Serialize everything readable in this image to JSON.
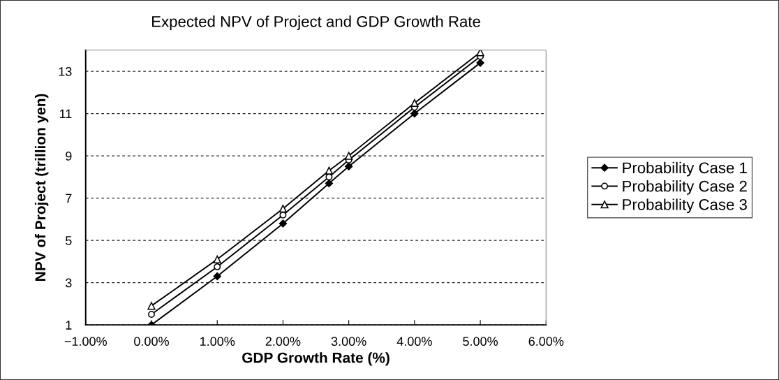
{
  "chart_data": {
    "type": "line",
    "title": "Expected NPV of Project and GDP Growth Rate",
    "xlabel": "GDP Growth Rate (%)",
    "ylabel": "NPV of Project (trillion yen)",
    "x": [
      0,
      1,
      2,
      2.7,
      3,
      4,
      5
    ],
    "series": [
      {
        "name": "Probability Case 1",
        "color": "#000000",
        "marker": "diamond",
        "values": [
          1.0,
          3.3,
          5.8,
          7.7,
          8.5,
          11.0,
          13.4
        ]
      },
      {
        "name": "Probability Case 2",
        "color": "#000000",
        "marker": "circle",
        "values": [
          1.5,
          3.75,
          6.2,
          8.0,
          8.8,
          11.3,
          13.7
        ]
      },
      {
        "name": "Probability Case 3",
        "color": "#000000",
        "marker": "triangle",
        "values": [
          1.9,
          4.1,
          6.5,
          8.3,
          9.0,
          11.5,
          13.9
        ]
      }
    ],
    "xlim": [
      -1,
      6
    ],
    "xticks": [
      {
        "value": -1,
        "label": "−1.00%"
      },
      {
        "value": 0,
        "label": "0.00%"
      },
      {
        "value": 1,
        "label": "1.00%"
      },
      {
        "value": 2,
        "label": "2.00%"
      },
      {
        "value": 3,
        "label": "3.00%"
      },
      {
        "value": 4,
        "label": "4.00%"
      },
      {
        "value": 5,
        "label": "5.00%"
      },
      {
        "value": 6,
        "label": "6.00%"
      }
    ],
    "ylim": [
      1,
      14
    ],
    "yticks": [
      1,
      3,
      5,
      7,
      9,
      11,
      13
    ],
    "grid": "y",
    "legend": "right",
    "line_style": "solid"
  }
}
